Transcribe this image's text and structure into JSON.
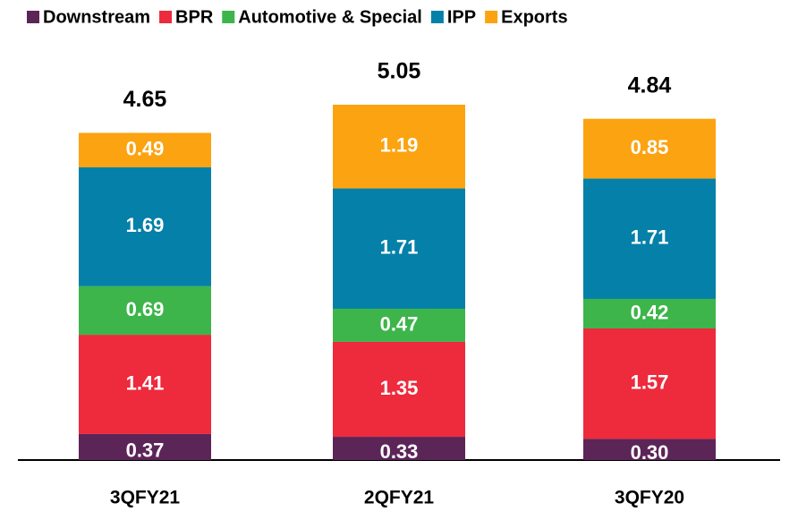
{
  "chart_data": {
    "type": "stacked_bar",
    "categories": [
      "3QFY21",
      "2QFY21",
      "3QFY20"
    ],
    "series": [
      {
        "name": "Downstream",
        "color": "#5c2558",
        "values": [
          0.37,
          0.33,
          0.3
        ],
        "value_labels": [
          "0.37",
          "0.33",
          "0.30"
        ]
      },
      {
        "name": "BPR",
        "color": "#ee2a3d",
        "values": [
          1.41,
          1.35,
          1.57
        ]
      },
      {
        "name": "Automotive & Special",
        "color": "#3db54a",
        "values": [
          0.69,
          0.47,
          0.42
        ]
      },
      {
        "name": "IPP",
        "color": "#0580a8",
        "values": [
          1.69,
          1.71,
          1.71
        ]
      },
      {
        "name": "Exports",
        "color": "#fca311",
        "values": [
          0.49,
          1.19,
          0.85
        ]
      }
    ],
    "totals": [
      4.65,
      5.05,
      4.84
    ],
    "legend": "top"
  }
}
